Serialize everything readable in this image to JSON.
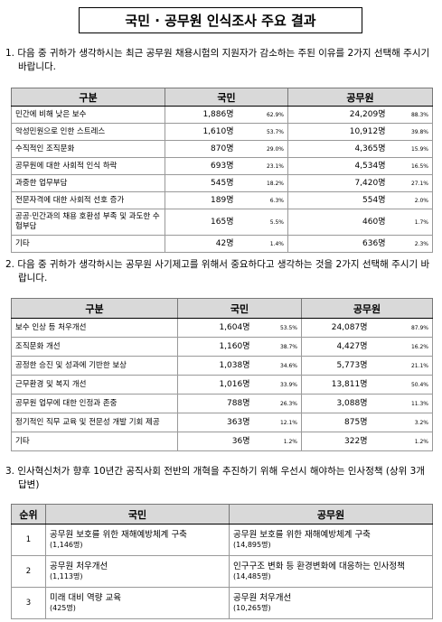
{
  "title": "국민 · 공무원 인식조사 주요 결과",
  "sections": [
    {
      "question": "1. 다음 중 귀하가 생각하시는 최근 공무원 채용시험의 지원자가 감소하는 주된 이유를 2가지 선택해 주시기 바랍니다.",
      "table": {
        "header": [
          "구분",
          "국민",
          "공무원"
        ],
        "rows": [
          [
            "민간에 비해 낮은 보수",
            "1,886명",
            "62.9%",
            "24,209명",
            "88.3%"
          ],
          [
            "악성민원으로 인한 스트레스",
            "1,610명",
            "53.7%",
            "10,912명",
            "39.8%"
          ],
          [
            "수직적인 조직문화",
            "870명",
            "29.0%",
            "4,365명",
            "15.9%"
          ],
          [
            "공무원에 대한 사회적 인식 하락",
            "693명",
            "23.1%",
            "4,534명",
            "16.5%"
          ],
          [
            "과중한 업무부담",
            "545명",
            "18.2%",
            "7,420명",
            "27.1%"
          ],
          [
            "전문자격에 대한 사회적 선호 증가",
            "189명",
            "6.3%",
            "554명",
            "2.0%"
          ],
          [
            "공공·민간과의 채용 호환성 부족 및 과도한 수험부담",
            "165명",
            "5.5%",
            "460명",
            "1.7%"
          ],
          [
            "기타",
            "42명",
            "1.4%",
            "636명",
            "2.3%"
          ]
        ]
      }
    },
    {
      "question": "2. 다음 중 귀하가 생각하시는 공무원 사기제고를 위해서 중요하다고 생각하는 것을 2가지 선택해 주시기 바랍니다.",
      "table": {
        "header": [
          "구분",
          "국민",
          "공무원"
        ],
        "rows": [
          [
            "보수 인상 등 처우개선",
            "1,604명",
            "53.5%",
            "24,087명",
            "87.9%"
          ],
          [
            "조직문화 개선",
            "1,160명",
            "38.7%",
            "4,427명",
            "16.2%"
          ],
          [
            "공정한 승진 및 성과에 기반한 보상",
            "1,038명",
            "34.6%",
            "5,773명",
            "21.1%"
          ],
          [
            "근무환경 및 복지 개선",
            "1,016명",
            "33.9%",
            "13,811명",
            "50.4%"
          ],
          [
            "공무원 업무에 대한 인정과 존중",
            "788명",
            "26.3%",
            "3,088명",
            "11.3%"
          ],
          [
            "정기적인 직무 교육 및 전문성 개발 기회 제공",
            "363명",
            "12.1%",
            "875명",
            "3.2%"
          ],
          [
            "기타",
            "36명",
            "1.2%",
            "322명",
            "1.2%"
          ]
        ]
      }
    },
    {
      "question": "3. 인사혁신처가 향후 10년간 공직사회 전반의 개혁을 추진하기 위해 우선시 해야하는 인사정책 (상위 3개 답변)",
      "table": {
        "header": [
          "순위",
          "국민",
          "공무원"
        ],
        "rows": [
          [
            "1",
            "공무원 보호를 위한 재해예방체계 구축",
            "(1,146명)",
            "공무원 보호를 위한 재해예방체계 구축",
            "(14,895명)"
          ],
          [
            "2",
            "공무원 처우개선",
            "(1,113명)",
            "인구구조 변화 등 환경변화에 대응하는 인사정책",
            "(14,485명)"
          ],
          [
            "3",
            "미래 대비 역량 교육",
            "(425명)",
            "공무원 처우개선",
            "(10,265명)"
          ]
        ]
      }
    }
  ]
}
